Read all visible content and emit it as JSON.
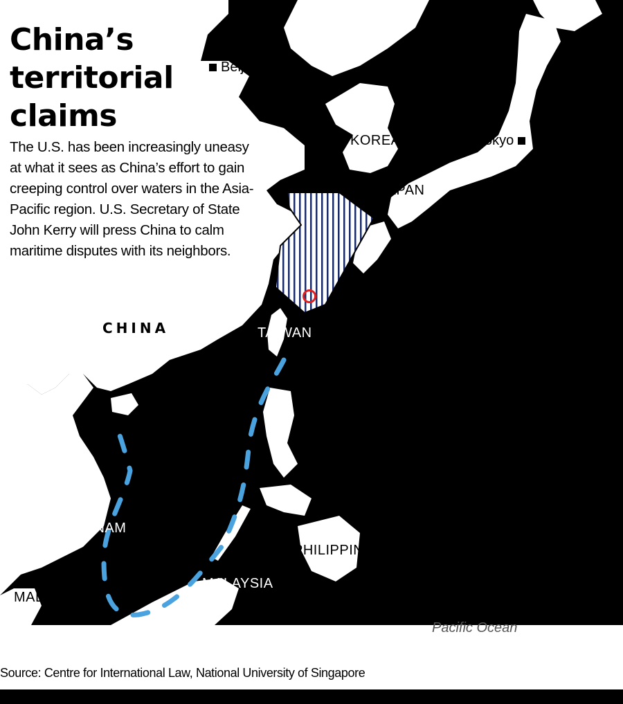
{
  "title": "China’s territorial claims",
  "subtitle": "The U.S. has been increasingly uneasy at what it sees as China’s effort to gain creeping control over waters in the Asia-Pacific region. U.S. Secretary of State John Kerry will press China to calm maritime disputes with its neighbors.",
  "cities": {
    "beijing": "Beijing",
    "tokyo": "Tokyo"
  },
  "countries": {
    "china": "CHINA",
    "korea": "KOREA",
    "japan": "JAPAN",
    "taiwan": "TAIWAN",
    "vietnam": "VIETNAM",
    "philippines": "PHILIPPINES",
    "malaysia": "MALAYSIA",
    "malaysia_west": "MALAYSIA"
  },
  "oceans": {
    "pacific": "Pacific Ocean"
  },
  "source": "Source: Centre for International Law, National University of Singapore",
  "colors": {
    "sea": "#000000",
    "land": "#ffffff",
    "nine_dash_line": "#4aa3df",
    "air_defense_zone_hatch": "#1a2b6b",
    "marker_circle": "#e02020"
  },
  "legend": {
    "nine_dash_line": "blue dashed line",
    "air_defense_zone": "hatched area",
    "disputed_islands": "red circle marker"
  }
}
